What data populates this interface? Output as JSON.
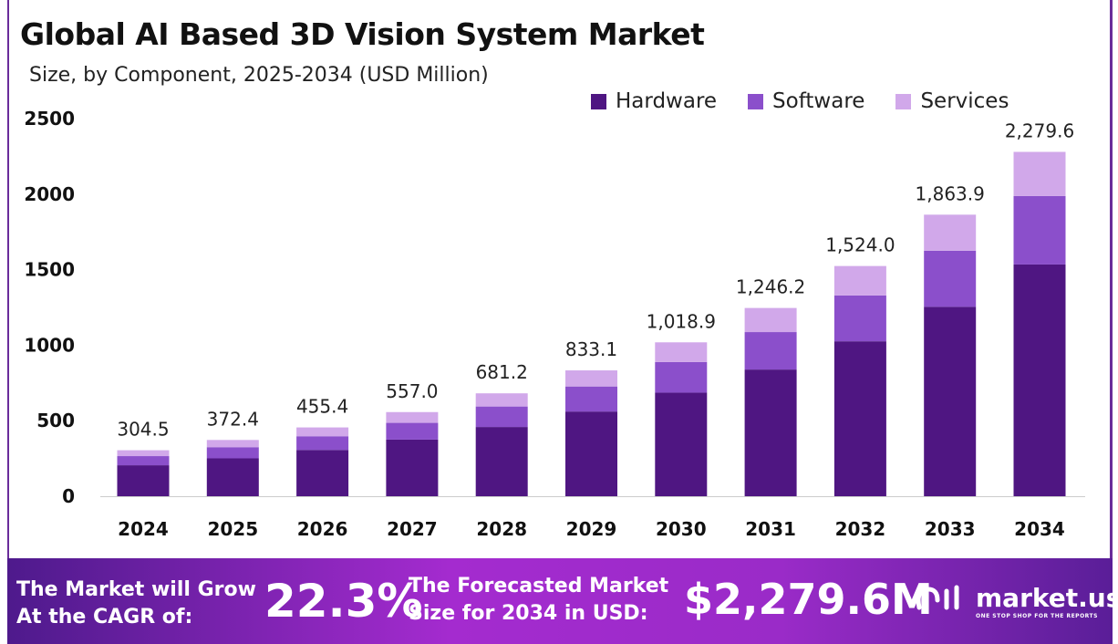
{
  "chart_data": {
    "type": "bar",
    "stacked": true,
    "title": "Global AI Based 3D Vision System Market",
    "subtitle": "Size, by Component, 2025-2034 (USD Million)",
    "categories": [
      "2024",
      "2025",
      "2026",
      "2027",
      "2028",
      "2029",
      "2030",
      "2031",
      "2032",
      "2033",
      "2034"
    ],
    "totals": [
      304.5,
      372.4,
      455.4,
      557.0,
      681.2,
      833.1,
      1018.9,
      1246.2,
      1524.0,
      1863.9,
      2279.6
    ],
    "total_labels": [
      "304.5",
      "372.4",
      "455.4",
      "557.0",
      "681.2",
      "833.1",
      "1,018.9",
      "1,246.2",
      "1,524.0",
      "1,863.9",
      "2,279.6"
    ],
    "series": [
      {
        "name": "Hardware",
        "color": "#4f1682",
        "values": [
          204.9,
          250.6,
          306.5,
          374.9,
          458.4,
          560.7,
          685.7,
          838.7,
          1025.7,
          1254.4,
          1534.2
        ]
      },
      {
        "name": "Software",
        "color": "#8b4fcb",
        "values": [
          60.6,
          74.1,
          90.6,
          110.8,
          135.6,
          165.8,
          202.8,
          248.0,
          303.3,
          370.9,
          453.6
        ]
      },
      {
        "name": "Services",
        "color": "#d1a8ea",
        "values": [
          39.0,
          47.7,
          58.3,
          71.3,
          87.2,
          106.6,
          130.4,
          159.5,
          195.0,
          238.6,
          291.8
        ]
      }
    ],
    "yticks": [
      "0",
      "500",
      "1000",
      "1500",
      "2000",
      "2500"
    ],
    "ylim": [
      0,
      2500
    ],
    "grid": false,
    "legend": "top-right"
  },
  "banner": {
    "cagr_text_1": "The Market will Grow",
    "cagr_text_2": "At the CAGR of:",
    "cagr_value": "22.3%",
    "size_text_1": "The Forecasted Market",
    "size_text_2": "Size for 2034 in USD:",
    "size_value": "$2,279.6M",
    "logo_text": "market.us",
    "logo_tagline": "ONE STOP SHOP FOR THE REPORTS"
  }
}
